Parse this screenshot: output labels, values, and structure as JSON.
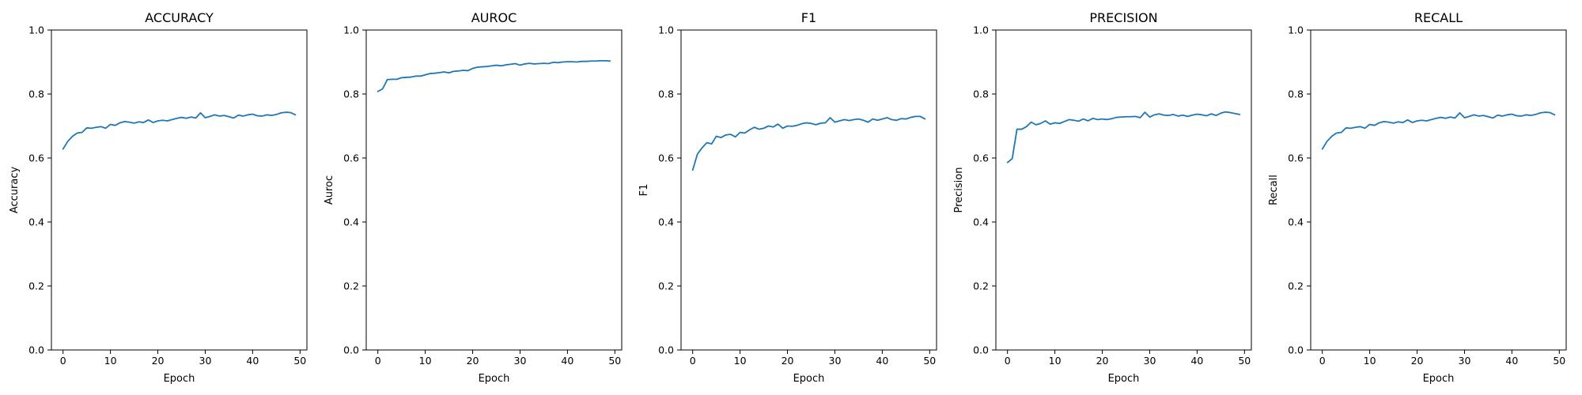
{
  "chart_data": [
    {
      "type": "line",
      "title": "ACCURACY",
      "xlabel": "Epoch",
      "ylabel": "Accuracy",
      "xlim": [
        -2.45,
        51.45
      ],
      "ylim": [
        0,
        1
      ],
      "xticks": [
        "0",
        "10",
        "20",
        "30",
        "40",
        "50"
      ],
      "yticks": [
        "0.0",
        "0.2",
        "0.4",
        "0.6",
        "0.8",
        "1.0"
      ],
      "grid": false,
      "x": [
        0,
        1,
        2,
        3,
        4,
        5,
        6,
        7,
        8,
        9,
        10,
        11,
        12,
        13,
        14,
        15,
        16,
        17,
        18,
        19,
        20,
        21,
        22,
        23,
        24,
        25,
        26,
        27,
        28,
        29,
        30,
        31,
        32,
        33,
        34,
        35,
        36,
        37,
        38,
        39,
        40,
        41,
        42,
        43,
        44,
        45,
        46,
        47,
        48,
        49
      ],
      "series": [
        {
          "color": "#1f77b4",
          "values": [
            0.628,
            0.652,
            0.668,
            0.678,
            0.68,
            0.694,
            0.693,
            0.696,
            0.698,
            0.693,
            0.705,
            0.702,
            0.71,
            0.714,
            0.712,
            0.709,
            0.713,
            0.711,
            0.719,
            0.711,
            0.716,
            0.718,
            0.716,
            0.72,
            0.724,
            0.727,
            0.724,
            0.728,
            0.725,
            0.741,
            0.726,
            0.73,
            0.735,
            0.731,
            0.733,
            0.729,
            0.725,
            0.734,
            0.731,
            0.735,
            0.737,
            0.732,
            0.731,
            0.735,
            0.733,
            0.736,
            0.741,
            0.743,
            0.742,
            0.735
          ]
        }
      ]
    },
    {
      "type": "line",
      "title": "AUROC",
      "xlabel": "Epoch",
      "ylabel": "Auroc",
      "xlim": [
        -2.45,
        51.45
      ],
      "ylim": [
        0,
        1
      ],
      "xticks": [
        "0",
        "10",
        "20",
        "30",
        "40",
        "50"
      ],
      "yticks": [
        "0.0",
        "0.2",
        "0.4",
        "0.6",
        "0.8",
        "1.0"
      ],
      "grid": false,
      "x": [
        0,
        1,
        2,
        3,
        4,
        5,
        6,
        7,
        8,
        9,
        10,
        11,
        12,
        13,
        14,
        15,
        16,
        17,
        18,
        19,
        20,
        21,
        22,
        23,
        24,
        25,
        26,
        27,
        28,
        29,
        30,
        31,
        32,
        33,
        34,
        35,
        36,
        37,
        38,
        39,
        40,
        41,
        42,
        43,
        44,
        45,
        46,
        47,
        48,
        49
      ],
      "series": [
        {
          "color": "#1f77b4",
          "values": [
            0.808,
            0.816,
            0.845,
            0.846,
            0.846,
            0.851,
            0.852,
            0.853,
            0.856,
            0.856,
            0.86,
            0.864,
            0.865,
            0.867,
            0.869,
            0.866,
            0.871,
            0.872,
            0.874,
            0.873,
            0.88,
            0.884,
            0.885,
            0.886,
            0.888,
            0.89,
            0.888,
            0.891,
            0.893,
            0.895,
            0.89,
            0.894,
            0.896,
            0.894,
            0.895,
            0.896,
            0.895,
            0.899,
            0.898,
            0.9,
            0.901,
            0.901,
            0.9,
            0.902,
            0.902,
            0.903,
            0.903,
            0.904,
            0.904,
            0.903
          ]
        }
      ]
    },
    {
      "type": "line",
      "title": "F1",
      "xlabel": "Epoch",
      "ylabel": "F1",
      "xlim": [
        -2.45,
        51.45
      ],
      "ylim": [
        0,
        1
      ],
      "xticks": [
        "0",
        "10",
        "20",
        "30",
        "40",
        "50"
      ],
      "yticks": [
        "0.0",
        "0.2",
        "0.4",
        "0.6",
        "0.8",
        "1.0"
      ],
      "grid": false,
      "x": [
        0,
        1,
        2,
        3,
        4,
        5,
        6,
        7,
        8,
        9,
        10,
        11,
        12,
        13,
        14,
        15,
        16,
        17,
        18,
        19,
        20,
        21,
        22,
        23,
        24,
        25,
        26,
        27,
        28,
        29,
        30,
        31,
        32,
        33,
        34,
        35,
        36,
        37,
        38,
        39,
        40,
        41,
        42,
        43,
        44,
        45,
        46,
        47,
        48,
        49
      ],
      "series": [
        {
          "color": "#1f77b4",
          "values": [
            0.562,
            0.612,
            0.632,
            0.648,
            0.644,
            0.668,
            0.664,
            0.672,
            0.674,
            0.666,
            0.68,
            0.678,
            0.688,
            0.696,
            0.69,
            0.693,
            0.7,
            0.697,
            0.706,
            0.693,
            0.7,
            0.699,
            0.702,
            0.707,
            0.71,
            0.708,
            0.704,
            0.709,
            0.71,
            0.726,
            0.712,
            0.716,
            0.72,
            0.717,
            0.72,
            0.722,
            0.718,
            0.712,
            0.722,
            0.718,
            0.722,
            0.726,
            0.72,
            0.718,
            0.723,
            0.722,
            0.727,
            0.73,
            0.73,
            0.722
          ]
        }
      ]
    },
    {
      "type": "line",
      "title": "PRECISION",
      "xlabel": "Epoch",
      "ylabel": "Precision",
      "xlim": [
        -2.45,
        51.45
      ],
      "ylim": [
        0,
        1
      ],
      "xticks": [
        "0",
        "10",
        "20",
        "30",
        "40",
        "50"
      ],
      "yticks": [
        "0.0",
        "0.2",
        "0.4",
        "0.6",
        "0.8",
        "1.0"
      ],
      "grid": false,
      "x": [
        0,
        1,
        2,
        3,
        4,
        5,
        6,
        7,
        8,
        9,
        10,
        11,
        12,
        13,
        14,
        15,
        16,
        17,
        18,
        19,
        20,
        21,
        22,
        23,
        24,
        25,
        26,
        27,
        28,
        29,
        30,
        31,
        32,
        33,
        34,
        35,
        36,
        37,
        38,
        39,
        40,
        41,
        42,
        43,
        44,
        45,
        46,
        47,
        48,
        49
      ],
      "series": [
        {
          "color": "#1f77b4",
          "values": [
            0.586,
            0.598,
            0.69,
            0.69,
            0.698,
            0.712,
            0.704,
            0.708,
            0.716,
            0.706,
            0.71,
            0.708,
            0.714,
            0.72,
            0.718,
            0.715,
            0.722,
            0.716,
            0.724,
            0.72,
            0.722,
            0.72,
            0.723,
            0.727,
            0.728,
            0.729,
            0.729,
            0.73,
            0.726,
            0.743,
            0.728,
            0.735,
            0.738,
            0.734,
            0.733,
            0.736,
            0.731,
            0.734,
            0.73,
            0.734,
            0.737,
            0.735,
            0.732,
            0.738,
            0.733,
            0.74,
            0.744,
            0.742,
            0.739,
            0.736
          ]
        }
      ]
    },
    {
      "type": "line",
      "title": "RECALL",
      "xlabel": "Epoch",
      "ylabel": "Recall",
      "xlim": [
        -2.45,
        51.45
      ],
      "ylim": [
        0,
        1
      ],
      "xticks": [
        "0",
        "10",
        "20",
        "30",
        "40",
        "50"
      ],
      "yticks": [
        "0.0",
        "0.2",
        "0.4",
        "0.6",
        "0.8",
        "1.0"
      ],
      "grid": false,
      "x": [
        0,
        1,
        2,
        3,
        4,
        5,
        6,
        7,
        8,
        9,
        10,
        11,
        12,
        13,
        14,
        15,
        16,
        17,
        18,
        19,
        20,
        21,
        22,
        23,
        24,
        25,
        26,
        27,
        28,
        29,
        30,
        31,
        32,
        33,
        34,
        35,
        36,
        37,
        38,
        39,
        40,
        41,
        42,
        43,
        44,
        45,
        46,
        47,
        48,
        49
      ],
      "series": [
        {
          "color": "#1f77b4",
          "values": [
            0.628,
            0.652,
            0.668,
            0.678,
            0.68,
            0.694,
            0.693,
            0.696,
            0.698,
            0.693,
            0.705,
            0.702,
            0.71,
            0.714,
            0.712,
            0.709,
            0.713,
            0.711,
            0.719,
            0.711,
            0.716,
            0.718,
            0.716,
            0.72,
            0.724,
            0.727,
            0.724,
            0.728,
            0.725,
            0.741,
            0.726,
            0.73,
            0.735,
            0.731,
            0.733,
            0.729,
            0.725,
            0.734,
            0.731,
            0.735,
            0.737,
            0.732,
            0.731,
            0.735,
            0.733,
            0.736,
            0.741,
            0.743,
            0.742,
            0.735
          ]
        }
      ]
    }
  ]
}
